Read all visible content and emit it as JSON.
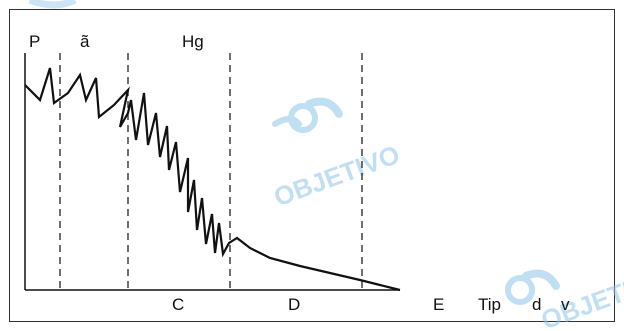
{
  "labels": {
    "top_left": "P",
    "top_second": "ã",
    "top_third": "Hg",
    "region_c": "C",
    "region_d": "D",
    "region_e": "E",
    "axis_right_1": "Tip",
    "axis_right_2": "d",
    "axis_right_3": "v"
  },
  "watermark": {
    "text": "OBJETIVO",
    "color": "#8fc6ea"
  },
  "colors": {
    "frame": "#333333",
    "curve": "#111111",
    "dashed": "#222222"
  }
}
